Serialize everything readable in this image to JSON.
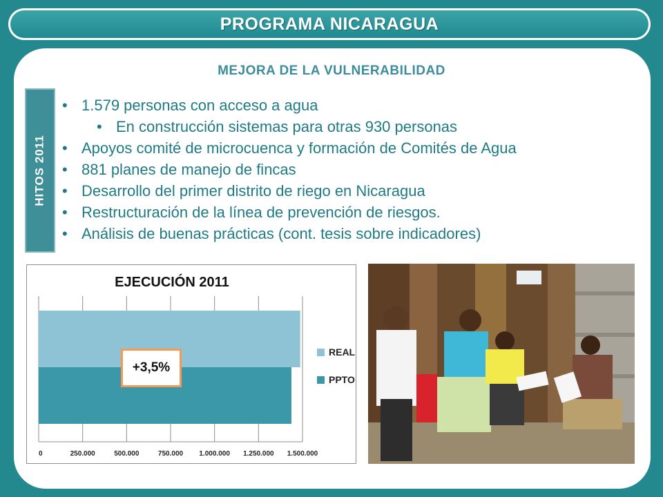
{
  "header": {
    "title": "PROGRAMA NICARAGUA"
  },
  "subtitle": "MEJORA DE LA VULNERABILIDAD",
  "side_tag": "HITOS 2011",
  "bullets": [
    "1.579 personas con acceso a agua",
    "En construcción sistemas para otras 930 personas",
    "Apoyos comité de microcuenca y formación de Comités de Agua",
    "881 planes de manejo de fincas",
    "Desarrollo del primer distrito de riego en Nicaragua",
    "Restructuración de la línea de prevención de riesgos.",
    "Análisis de buenas prácticas (cont. tesis sobre indicadores)"
  ],
  "colors": {
    "background": "#24898e",
    "accent_text": "#1f7a86",
    "real": "#8dc3d4",
    "ppto": "#3a98a8",
    "badge_border": "#f59a55"
  },
  "chart_data": {
    "type": "bar",
    "orientation": "horizontal",
    "title": "EJECUCIÓN 2011",
    "series": [
      {
        "name": "REAL",
        "values": [
          1487000
        ]
      },
      {
        "name": "PPTO",
        "values": [
          1437000
        ]
      }
    ],
    "xlim": [
      0,
      1500000
    ],
    "x_ticks": [
      "0",
      "250.000",
      "500.000",
      "750.000",
      "1.000.000",
      "1.250.000",
      "1.500.000"
    ],
    "annotation": "+3,5%",
    "legend_position": "right",
    "grid": true
  },
  "photo": {
    "subject": "people-meeting-photo"
  }
}
